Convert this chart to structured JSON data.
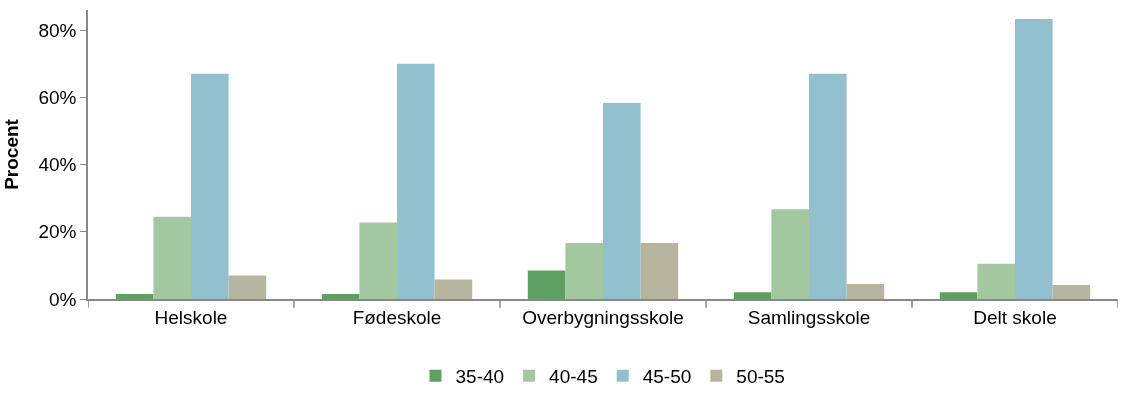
{
  "chart_data": {
    "type": "bar",
    "ylabel": "Procent",
    "categories": [
      "Helskole",
      "Fødeskole",
      "Overbygningsskole",
      "Samlingsskole",
      "Delt skole"
    ],
    "series": [
      {
        "name": "35-40",
        "color": "#5e9f62",
        "values": [
          1.5,
          1.5,
          8.5,
          2,
          2
        ]
      },
      {
        "name": "40-45",
        "color": "#a3c89f",
        "values": [
          24.5,
          22.8,
          16.7,
          26.7,
          10.5
        ]
      },
      {
        "name": "45-50",
        "color": "#93c0cf",
        "values": [
          67,
          70,
          58.3,
          67,
          83.3
        ]
      },
      {
        "name": "50-55",
        "color": "#b7b59e",
        "values": [
          7,
          5.8,
          16.7,
          4.5,
          4.2
        ]
      }
    ],
    "ylim": [
      0,
      86
    ],
    "yticks": [
      {
        "value": 0,
        "label": "0%"
      },
      {
        "value": 20,
        "label": "20%"
      },
      {
        "value": 40,
        "label": "40%"
      },
      {
        "value": 60,
        "label": "60%"
      },
      {
        "value": 80,
        "label": "80%"
      }
    ],
    "grid": false,
    "legend": "bottom"
  }
}
